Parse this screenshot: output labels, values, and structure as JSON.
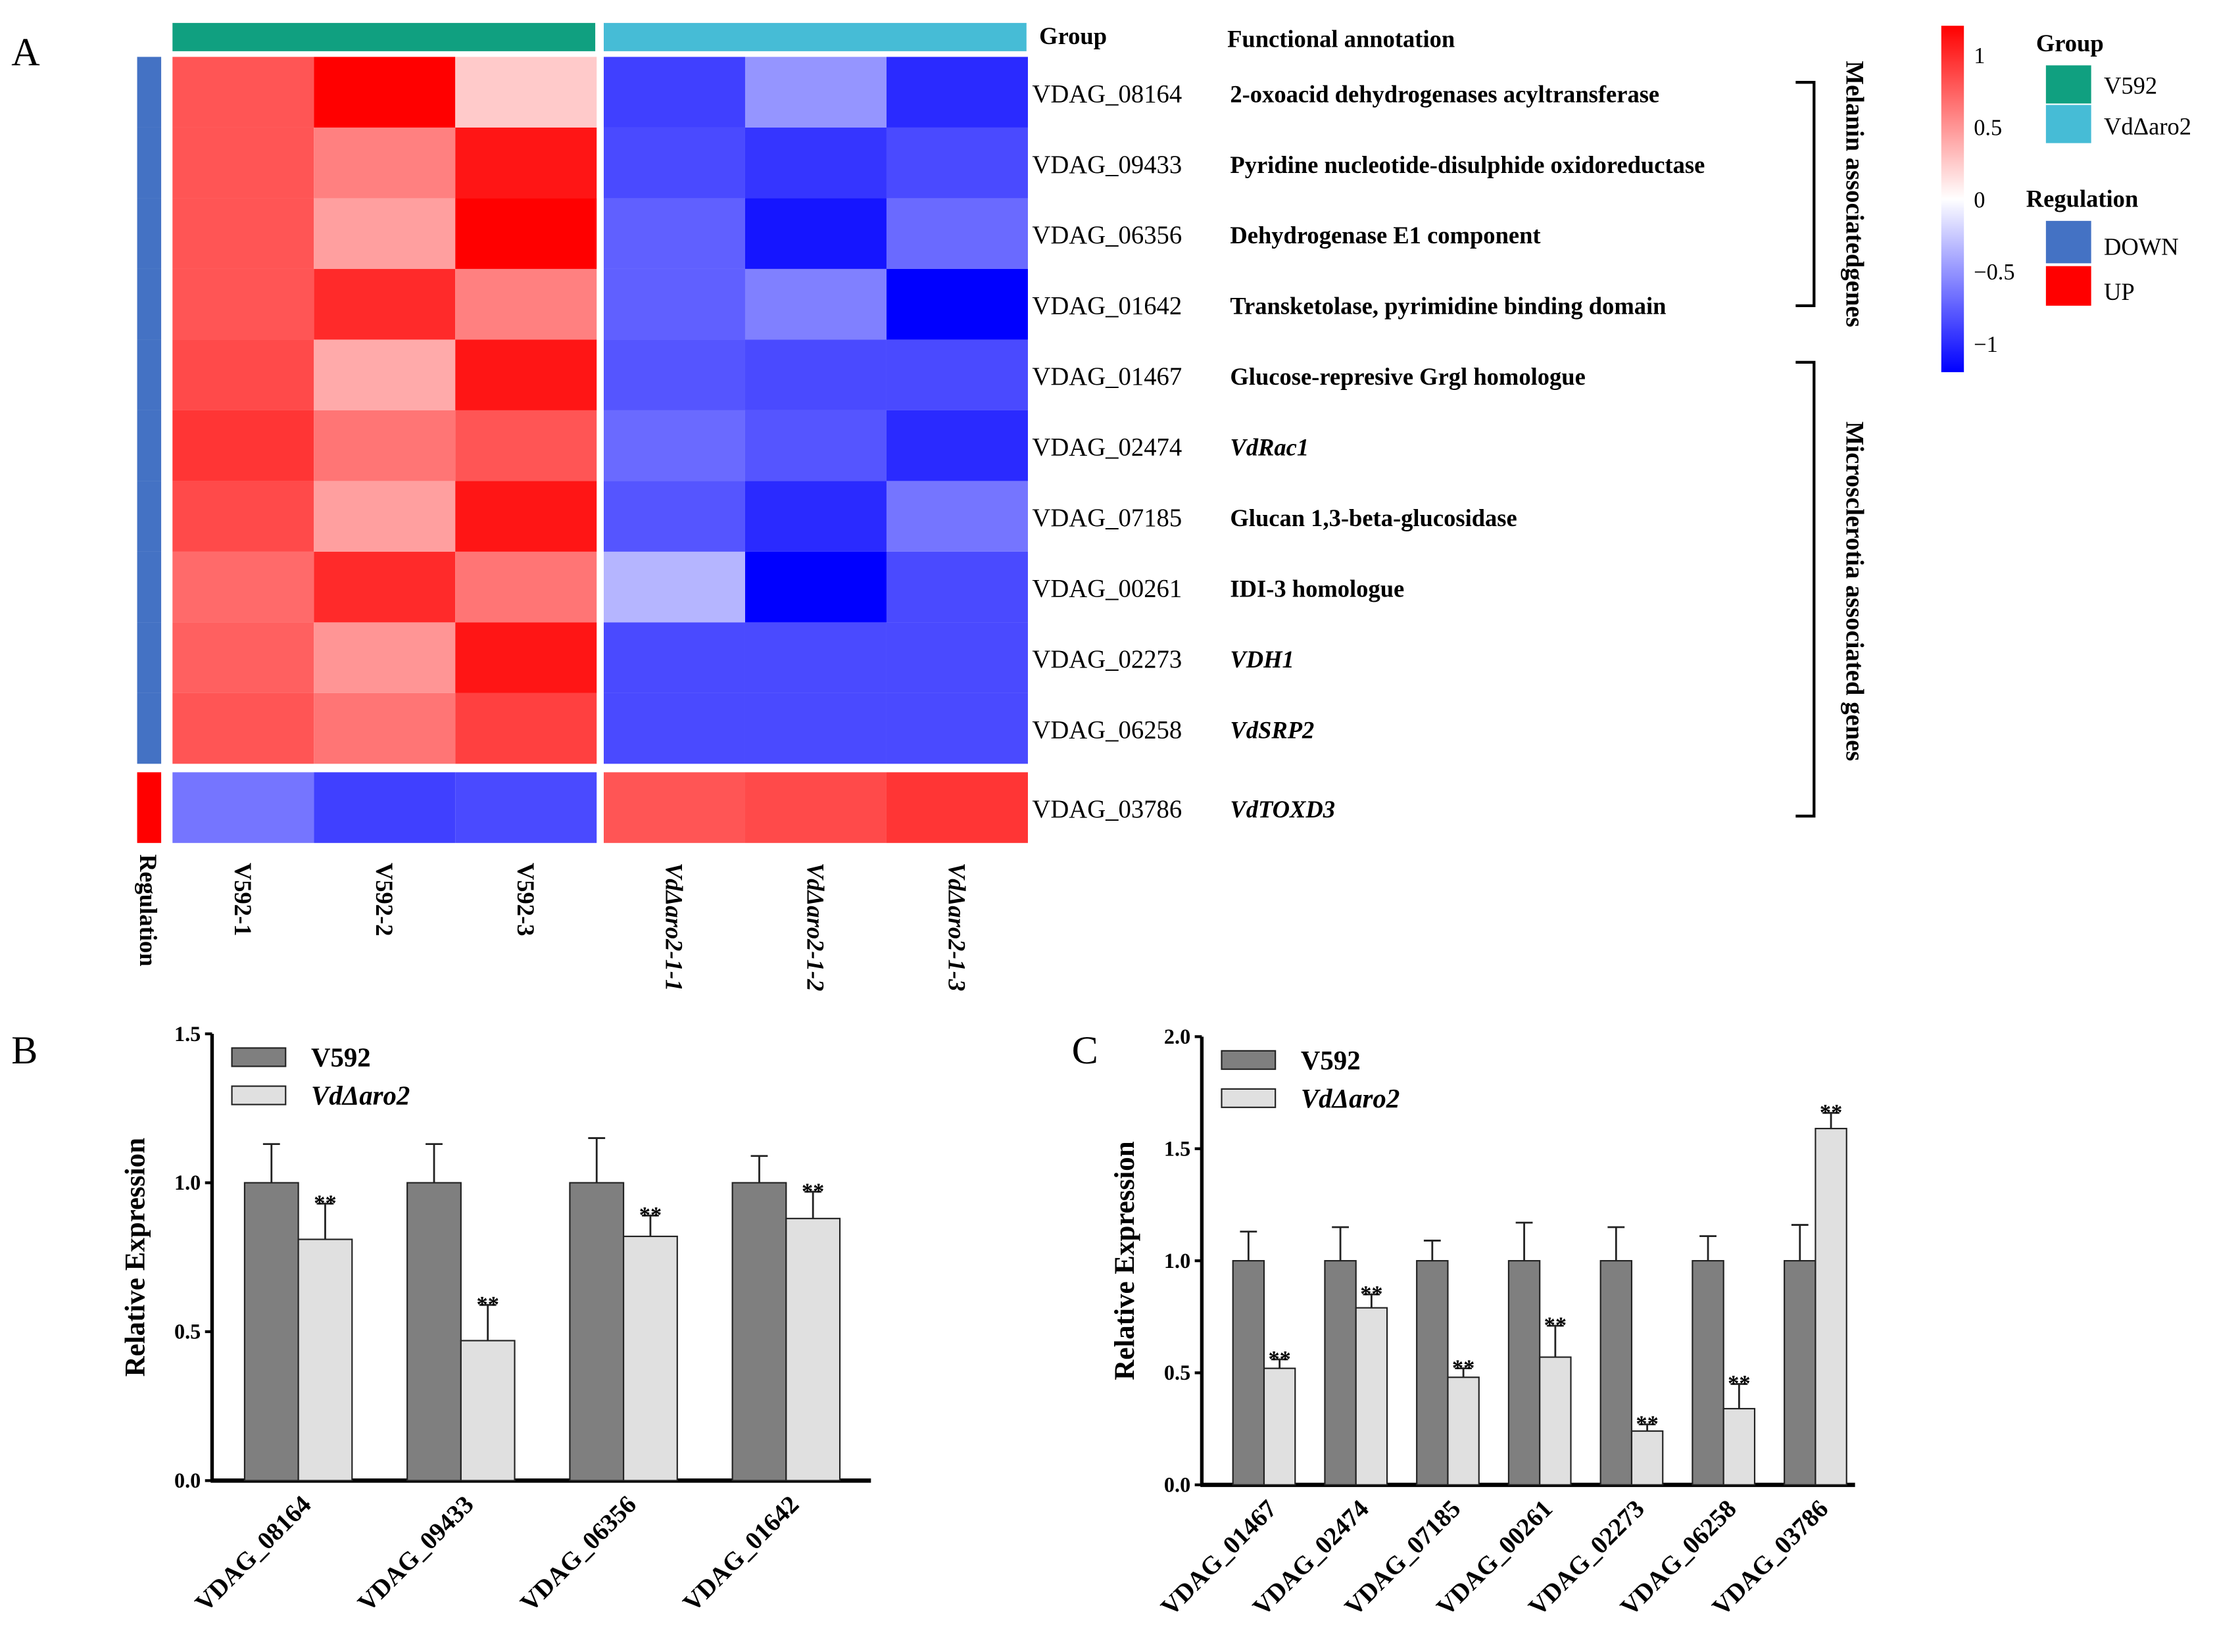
{
  "panel_labels": {
    "a": "A",
    "b": "B",
    "c": "C"
  },
  "colors": {
    "up": "#ff0000",
    "down": "#0000ff",
    "mid": "#ffffff",
    "v592": "#10a080",
    "mutant": "#46bcd6",
    "reg_down": "#4472c4",
    "reg_up": "#ff0000",
    "bar_dark": "#7f7f7f",
    "bar_light": "#e0e0e0"
  },
  "heatmap": {
    "group_header": "Group",
    "annotation_header": "Functional annotation",
    "columns": [
      "V592-1",
      "V592-2",
      "V592-3",
      "VdΔaro2-1-1",
      "VdΔaro2-1-2",
      "VdΔaro2-1-3"
    ],
    "column_groups": [
      "V592",
      "V592",
      "V592",
      "VdΔaro2",
      "VdΔaro2",
      "VdΔaro2"
    ],
    "regulation_label": "Regulation",
    "rows": [
      {
        "gene": "VDAG_08164",
        "annotation": "2-oxoacid dehydrogenases acyltransferase",
        "italic": false,
        "regulation": "DOWN",
        "values": [
          0.8,
          1.3,
          0.25,
          -0.9,
          -0.5,
          -1.0
        ]
      },
      {
        "gene": "VDAG_09433",
        "annotation": "Pyridine nucleotide-disulphide oxidoreductase",
        "italic": false,
        "regulation": "DOWN",
        "values": [
          0.8,
          0.6,
          1.1,
          -0.85,
          -0.95,
          -0.85
        ]
      },
      {
        "gene": "VDAG_06356",
        "annotation": "Dehydrogenase E1 component",
        "italic": false,
        "regulation": "DOWN",
        "values": [
          0.8,
          0.45,
          1.25,
          -0.75,
          -1.1,
          -0.7
        ]
      },
      {
        "gene": "VDAG_01642",
        "annotation": "Transketolase, pyrimidine binding domain",
        "italic": false,
        "regulation": "DOWN",
        "values": [
          0.8,
          1.0,
          0.6,
          -0.75,
          -0.6,
          -1.2
        ]
      },
      {
        "gene": "VDAG_01467",
        "annotation": "Glucose-represive Grgl homologue",
        "italic": false,
        "regulation": "DOWN",
        "values": [
          0.85,
          0.4,
          1.1,
          -0.8,
          -0.85,
          -0.85
        ]
      },
      {
        "gene": "VDAG_02474",
        "annotation": "VdRac1",
        "italic": true,
        "regulation": "DOWN",
        "values": [
          0.95,
          0.65,
          0.8,
          -0.7,
          -0.8,
          -1.0
        ]
      },
      {
        "gene": "VDAG_07185",
        "annotation": "Glucan 1,3-beta-glucosidase",
        "italic": false,
        "regulation": "DOWN",
        "values": [
          0.85,
          0.45,
          1.1,
          -0.8,
          -1.0,
          -0.65
        ]
      },
      {
        "gene": "VDAG_00261",
        "annotation": "IDI-3 homologue",
        "italic": false,
        "regulation": "DOWN",
        "values": [
          0.7,
          1.0,
          0.65,
          -0.35,
          -1.2,
          -0.85
        ]
      },
      {
        "gene": "VDAG_02273",
        "annotation": "VDH1",
        "italic": true,
        "regulation": "DOWN",
        "values": [
          0.75,
          0.5,
          1.1,
          -0.85,
          -0.85,
          -0.85
        ]
      },
      {
        "gene": "VDAG_06258",
        "annotation": "VdSRP2",
        "italic": true,
        "regulation": "DOWN",
        "values": [
          0.8,
          0.65,
          0.9,
          -0.85,
          -0.85,
          -0.85
        ]
      },
      {
        "gene": "VDAG_03786",
        "annotation": "VdTOXD3",
        "italic": true,
        "regulation": "UP",
        "values": [
          -0.65,
          -0.9,
          -0.85,
          0.8,
          0.85,
          0.95
        ]
      }
    ],
    "brackets": [
      "Melanin associatedgenes",
      "Microsclerotia associated genes"
    ],
    "colorbar": {
      "range": [
        -1.2,
        1.2
      ],
      "ticks": [
        1,
        0.5,
        0,
        -0.5,
        -1
      ],
      "tick_labels": [
        "1",
        "0.5",
        "0",
        "−0.5",
        "−1"
      ]
    },
    "legend": {
      "group_title": "Group",
      "groups": [
        "V592",
        "VdΔaro2"
      ],
      "regulation_title": "Regulation",
      "regulation": [
        "DOWN",
        "UP"
      ]
    }
  },
  "chart_data": [
    {
      "type": "bar",
      "panel": "B",
      "ylabel": "Relative Expression",
      "ylim": [
        0,
        1.5
      ],
      "yticks": [
        "0.0",
        "0.5",
        "1.0",
        "1.5"
      ],
      "categories": [
        "VDAG_08164",
        "VDAG_09433",
        "VDAG_06356",
        "VDAG_01642"
      ],
      "series": [
        {
          "name": "V592",
          "values": [
            1,
            1,
            1,
            1
          ],
          "errors": [
            0.13,
            0.13,
            0.15,
            0.09
          ]
        },
        {
          "name": "VdΔaro2",
          "values": [
            0.81,
            0.47,
            0.82,
            0.88
          ],
          "errors": [
            0.12,
            0.12,
            0.07,
            0.09
          ],
          "annotations": [
            "**",
            "**",
            "**",
            "**"
          ]
        }
      ],
      "legend": "top-left"
    },
    {
      "type": "bar",
      "panel": "C",
      "ylabel": "Relative Expression",
      "ylim": [
        0,
        2.0
      ],
      "yticks": [
        "0.0",
        "0.5",
        "1.0",
        "1.5",
        "2.0"
      ],
      "categories": [
        "VDAG_01467",
        "VDAG_02474",
        "VDAG_07185",
        "VDAG_00261",
        "VDAG_02273",
        "VDAG_06258",
        "VDAG_03786"
      ],
      "series": [
        {
          "name": "V592",
          "values": [
            1,
            1,
            1,
            1,
            1,
            1,
            1
          ],
          "errors": [
            0.13,
            0.15,
            0.09,
            0.17,
            0.15,
            0.11,
            0.16
          ]
        },
        {
          "name": "VdΔaro2",
          "values": [
            0.52,
            0.79,
            0.48,
            0.57,
            0.24,
            0.34,
            1.59
          ],
          "errors": [
            0.04,
            0.06,
            0.04,
            0.14,
            0.03,
            0.11,
            0.07
          ],
          "annotations": [
            "**",
            "**",
            "**",
            "**",
            "**",
            "**",
            "**"
          ]
        }
      ],
      "legend": "top-left"
    }
  ]
}
